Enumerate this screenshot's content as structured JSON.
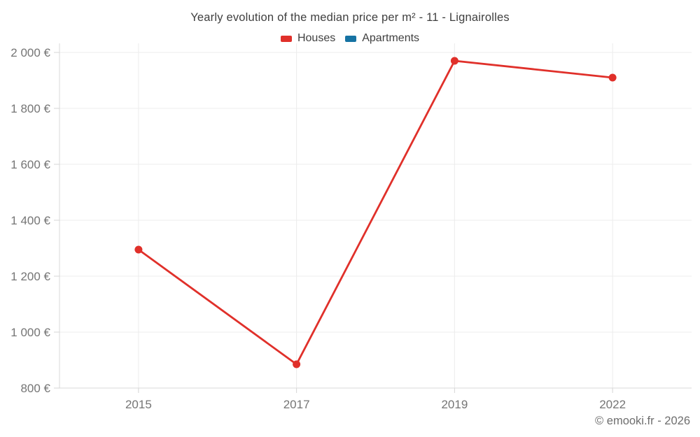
{
  "chart_data": {
    "type": "line",
    "title": "Yearly evolution of the median price per m² - 11 - Lignairolles",
    "categories": [
      "2015",
      "2017",
      "2019",
      "2022"
    ],
    "series": [
      {
        "name": "Houses",
        "color": "#e0302a",
        "values": [
          1295,
          885,
          1970,
          1910
        ]
      },
      {
        "name": "Apartments",
        "color": "#1673a3",
        "values": []
      }
    ],
    "xlabel": "",
    "ylabel": "",
    "ylim": [
      800,
      2000
    ],
    "ytick_step": 200,
    "ytick_labels": [
      "800 €",
      "1 000 €",
      "1 200 €",
      "1 400 €",
      "1 600 €",
      "1 800 €",
      "2 000 €"
    ],
    "ytick_suffix": " €",
    "grid": true,
    "legend_position": "top",
    "colors": {
      "grid": "#ececec",
      "axis": "#d9d9d9",
      "tick": "#d4d4d4",
      "axis_label": "#757575",
      "title_text": "#3f3f3f",
      "background": "#ffffff"
    }
  },
  "footer": {
    "copyright": "© emooki.fr - 2026"
  }
}
